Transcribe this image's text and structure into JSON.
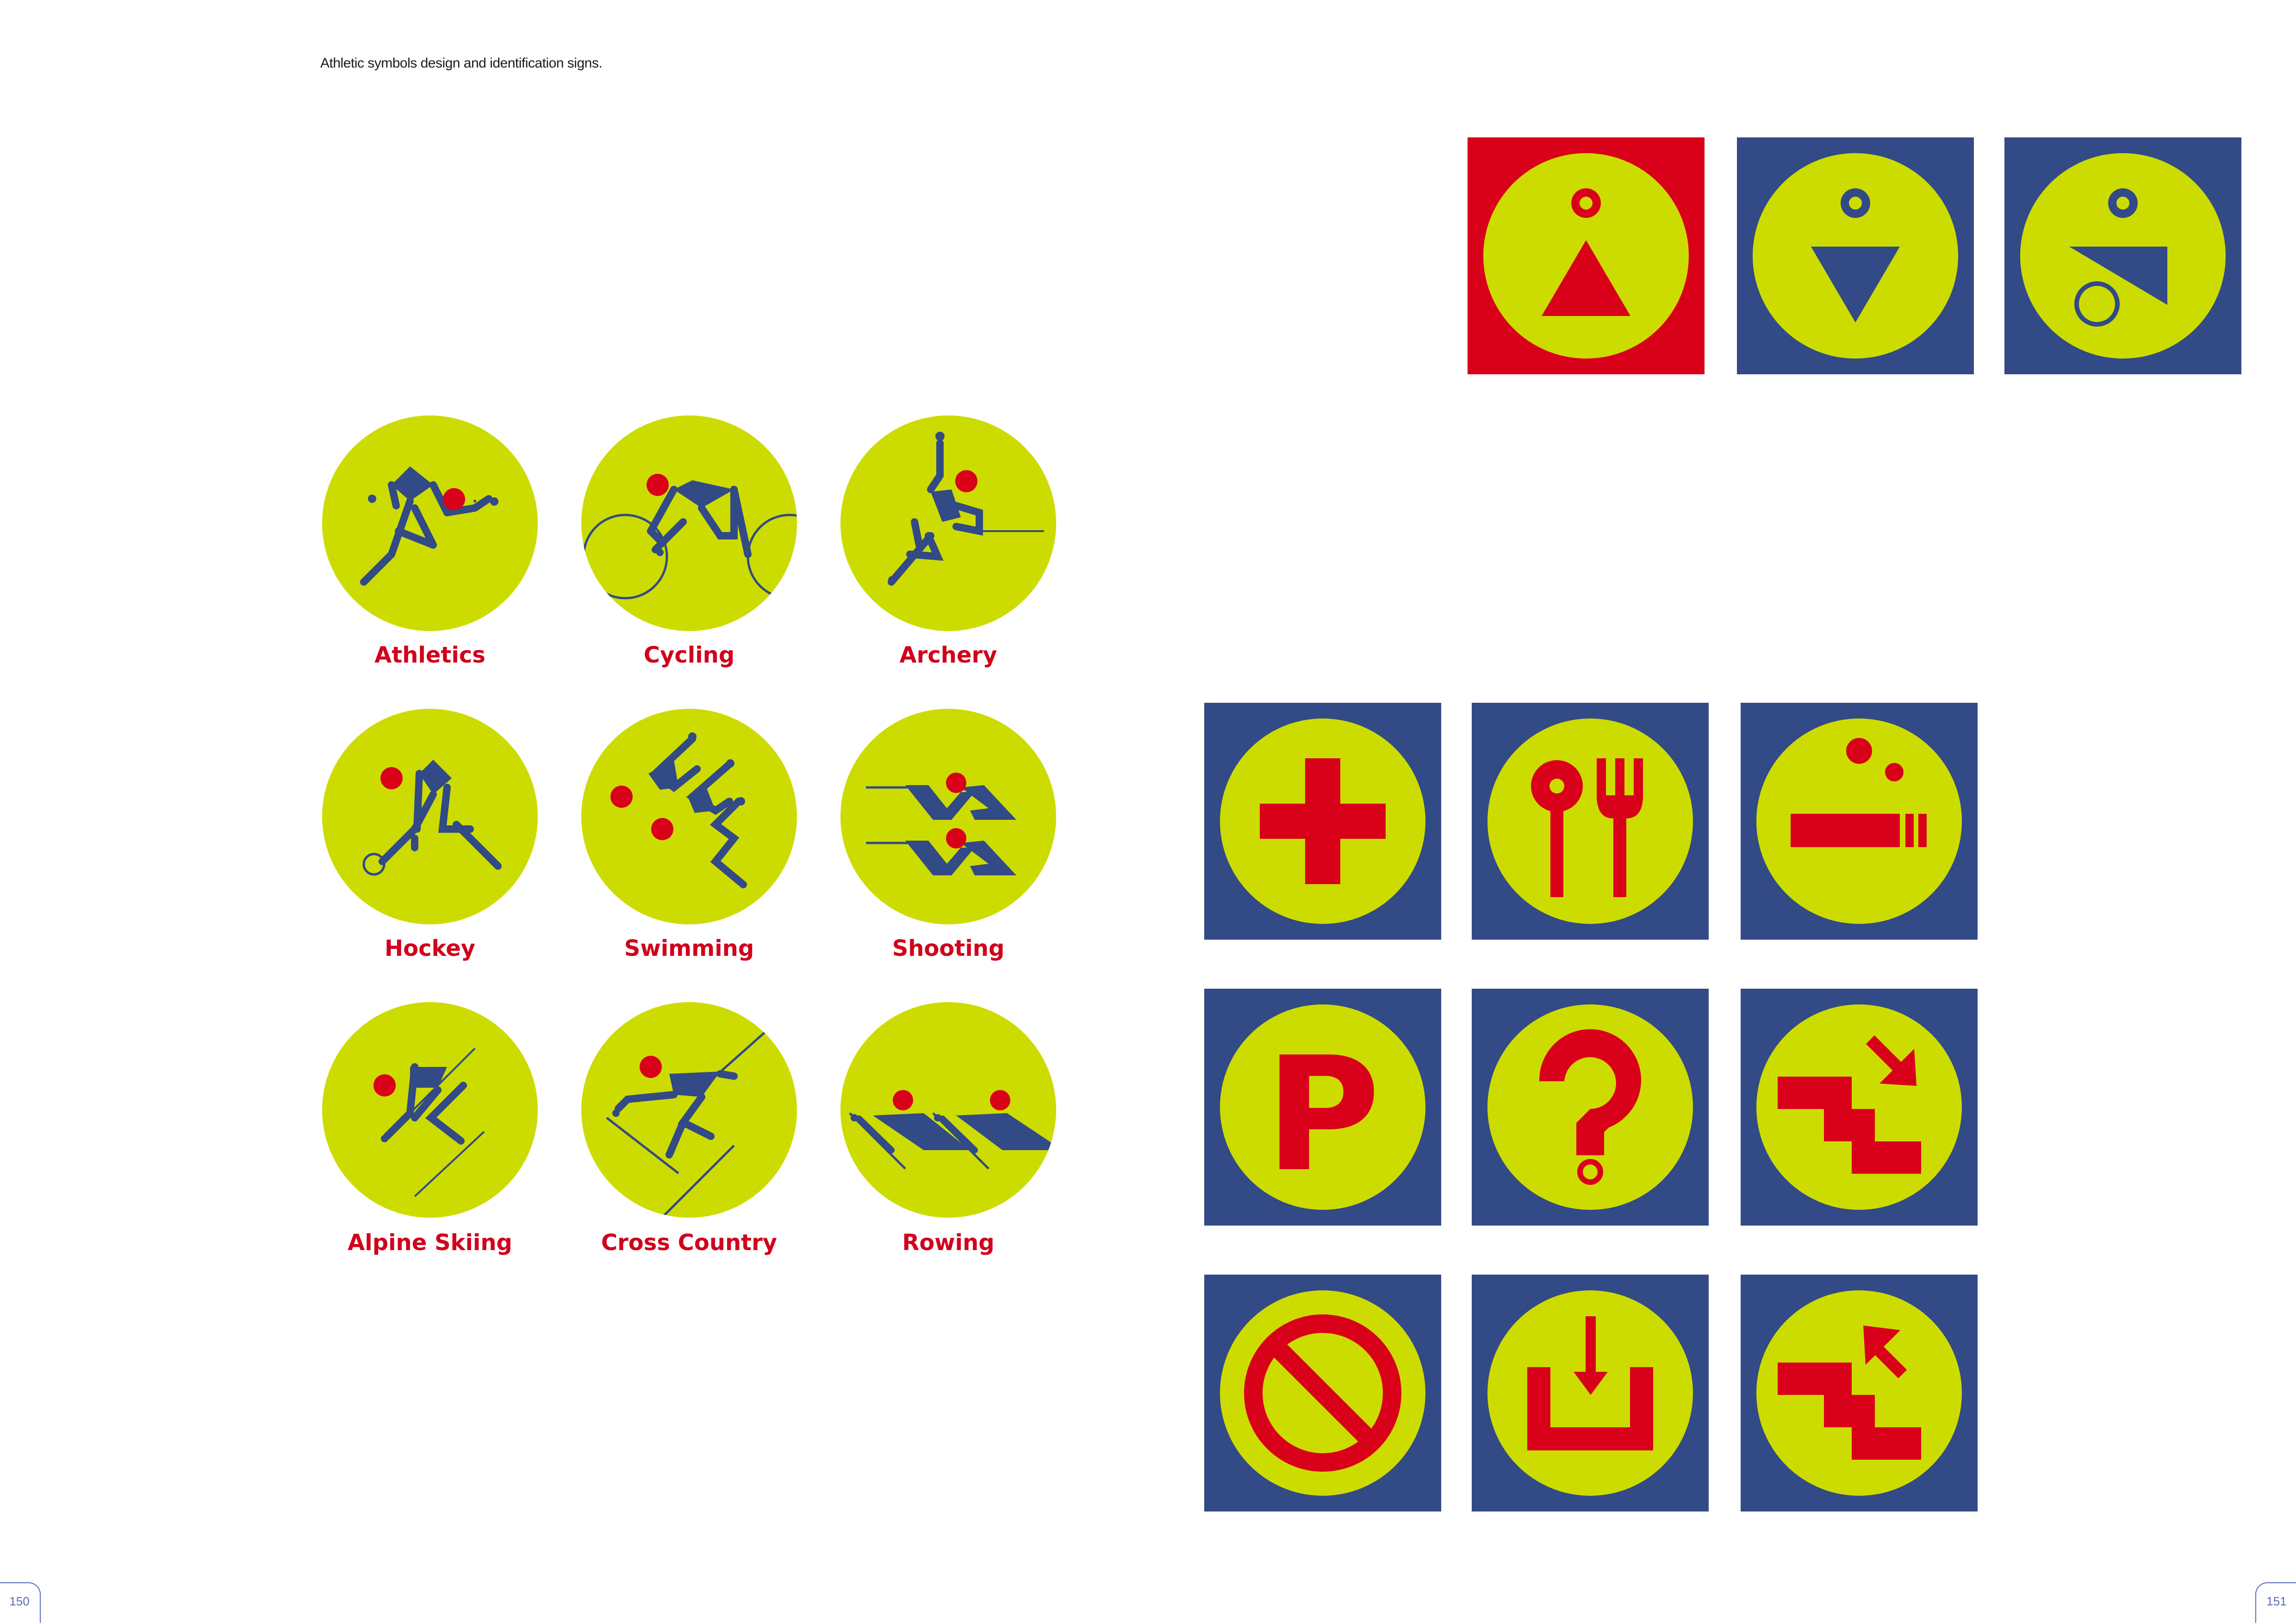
{
  "caption": "Athletic symbols design and identification signs.",
  "colors": {
    "lime": "#cddc00",
    "navy": "#324a85",
    "red": "#d9001a",
    "label_red": "#d0021b"
  },
  "sports": [
    {
      "icon": "athletics-icon",
      "label": "Athletics"
    },
    {
      "icon": "cycling-icon",
      "label": "Cycling"
    },
    {
      "icon": "archery-icon",
      "label": "Archery"
    },
    {
      "icon": "hockey-icon",
      "label": "Hockey"
    },
    {
      "icon": "swimming-icon",
      "label": "Swimming"
    },
    {
      "icon": "shooting-icon",
      "label": "Shooting"
    },
    {
      "icon": "alpine-skiing-icon",
      "label": "Alpine Skiing"
    },
    {
      "icon": "cross-country-icon",
      "label": "Cross Country"
    },
    {
      "icon": "rowing-icon",
      "label": "Rowing"
    }
  ],
  "toilet_signs": [
    {
      "icon": "women-toilet-icon",
      "background": "red"
    },
    {
      "icon": "men-toilet-icon",
      "background": "navy"
    },
    {
      "icon": "accessible-toilet-icon",
      "background": "navy"
    }
  ],
  "service_signs": [
    {
      "icon": "first-aid-cross-icon",
      "letter": ""
    },
    {
      "icon": "restaurant-icon",
      "letter": ""
    },
    {
      "icon": "smoking-area-icon",
      "letter": ""
    },
    {
      "icon": "parking-icon",
      "letter": "P"
    },
    {
      "icon": "information-icon",
      "letter": ""
    },
    {
      "icon": "stairs-down-icon",
      "letter": ""
    },
    {
      "icon": "no-entry-icon",
      "letter": ""
    },
    {
      "icon": "entrance-icon",
      "letter": ""
    },
    {
      "icon": "stairs-up-icon",
      "letter": ""
    }
  ],
  "page_numbers": {
    "left": "150",
    "right": "151"
  }
}
